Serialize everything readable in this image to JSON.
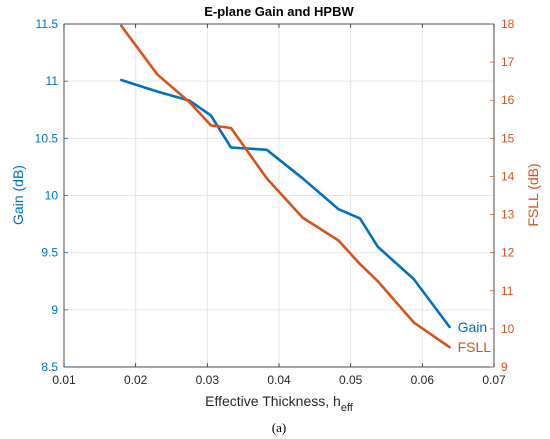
{
  "chart_data": {
    "type": "line",
    "title": "E-plane Gain and HPBW",
    "xlabel": {
      "main": "Effective Thickness, h",
      "sub": "eff"
    },
    "ylabel_left": "Gain (dB)",
    "ylabel_right": "FSLL (dB)",
    "xlim": [
      0.01,
      0.07
    ],
    "ylim_left": [
      8.5,
      11.5
    ],
    "ylim_right": [
      9,
      18
    ],
    "xticks": [
      0.01,
      0.02,
      0.03,
      0.04,
      0.05,
      0.06,
      0.07
    ],
    "xtick_labels": [
      "0.01",
      "0.02",
      "0.03",
      "0.04",
      "0.05",
      "0.06",
      "0.07"
    ],
    "yticks_left": [
      8.5,
      9,
      9.5,
      10,
      10.5,
      11,
      11.5
    ],
    "ytick_labels_left": [
      "8.5",
      "9",
      "9.5",
      "10",
      "10.5",
      "11",
      "11.5"
    ],
    "yticks_right": [
      9,
      10,
      11,
      12,
      13,
      14,
      15,
      16,
      17,
      18
    ],
    "ytick_labels_right": [
      "9",
      "10",
      "11",
      "12",
      "13",
      "14",
      "15",
      "16",
      "17",
      "18"
    ],
    "grid": true,
    "series": [
      {
        "name": "Gain",
        "axis": "left",
        "color": "#0072BD",
        "x": [
          0.018,
          0.023,
          0.0275,
          0.0305,
          0.0333,
          0.0383,
          0.0433,
          0.0483,
          0.0513,
          0.0538,
          0.0588,
          0.0638
        ],
        "y": [
          11.01,
          10.91,
          10.83,
          10.7,
          10.42,
          10.4,
          10.15,
          9.88,
          9.8,
          9.55,
          9.27,
          8.85
        ]
      },
      {
        "name": "FSLL",
        "axis": "right",
        "color": "#D95319",
        "x": [
          0.018,
          0.023,
          0.0275,
          0.0305,
          0.0333,
          0.0383,
          0.0433,
          0.0483,
          0.0513,
          0.0538,
          0.0588,
          0.0638
        ],
        "y": [
          17.95,
          16.68,
          15.95,
          15.34,
          15.27,
          13.95,
          12.92,
          12.32,
          11.7,
          11.25,
          10.17,
          9.52
        ]
      }
    ]
  },
  "caption": "(a)"
}
